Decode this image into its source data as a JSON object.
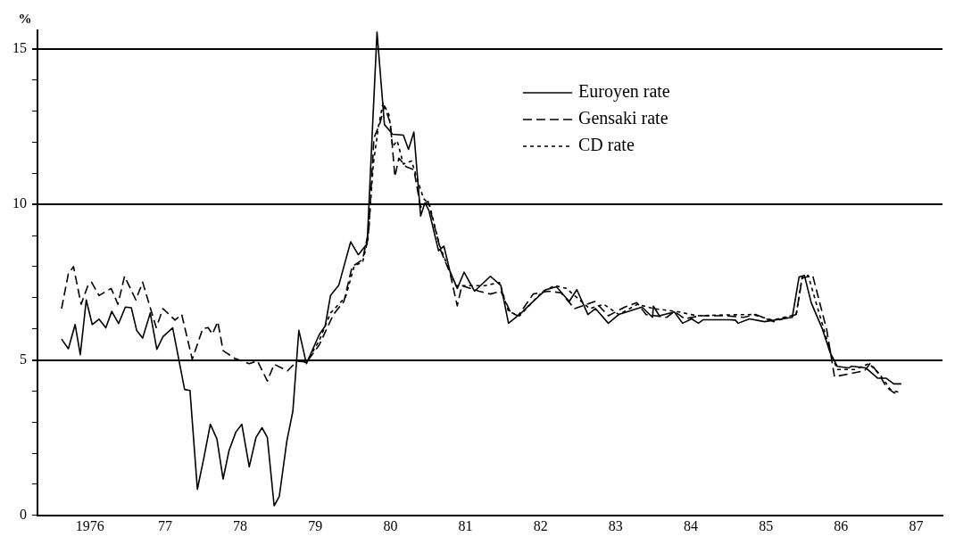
{
  "chart_data": {
    "type": "line",
    "ylabel": "%",
    "legend": "top right",
    "grid": "y",
    "marker": "none",
    "xlim": [
      "1975-10-20",
      "1987-11-07"
    ],
    "xticks": [
      {
        "value": "1976-07-02",
        "label": "1976"
      },
      {
        "value": "1977-07-02",
        "label": "77"
      },
      {
        "value": "1978-07-02",
        "label": "78"
      },
      {
        "value": "1979-07-02",
        "label": "79"
      },
      {
        "value": "1980-07-02",
        "label": "80"
      },
      {
        "value": "1981-07-02",
        "label": "81"
      },
      {
        "value": "1982-07-02",
        "label": "82"
      },
      {
        "value": "1983-07-02",
        "label": "83"
      },
      {
        "value": "1984-07-02",
        "label": "84"
      },
      {
        "value": "1985-07-02",
        "label": "85"
      },
      {
        "value": "1986-07-02",
        "label": "86"
      },
      {
        "value": "1987-07-02",
        "label": "87"
      }
    ],
    "ylim": [
      0,
      15.6
    ],
    "yticks": [
      0,
      {
        "value": 1,
        "label": null
      },
      {
        "value": 2,
        "label": null
      },
      {
        "value": 3,
        "label": null
      },
      {
        "value": 4,
        "label": null
      },
      5,
      {
        "value": 6,
        "label": null
      },
      {
        "value": 7,
        "label": null
      },
      {
        "value": 8,
        "label": null
      },
      {
        "value": 9,
        "label": null
      },
      10,
      {
        "value": 11,
        "label": null
      },
      {
        "value": 12,
        "label": null
      },
      {
        "value": 13,
        "label": null
      },
      {
        "value": 14,
        "label": null
      },
      15
    ],
    "series": [
      {
        "name": "Euroyen rate",
        "color": "#000000",
        "line_style": "solid",
        "x": [
          "1976-02-14",
          "1976-03-19",
          "1976-04-21",
          "1976-05-16",
          "1976-06-14",
          "1976-07-13",
          "1976-08-15",
          "1976-09-17",
          "1976-10-16",
          "1976-11-18",
          "1976-12-21",
          "1977-01-19",
          "1977-02-14",
          "1977-03-15",
          "1977-04-21",
          "1977-05-23",
          "1977-06-22",
          "1977-08-08",
          "1977-10-05",
          "1977-10-31",
          "1977-12-06",
          "1978-01-08",
          "1978-02-07",
          "1978-03-11",
          "1978-04-10",
          "1978-05-09",
          "1978-06-11",
          "1978-07-10",
          "1978-08-15",
          "1978-09-17",
          "1978-10-16",
          "1978-11-11",
          "1978-12-14",
          "1979-01-08",
          "1979-02-14",
          "1979-03-15",
          "1979-04-13",
          "1979-05-20",
          "1979-07-21",
          "1979-08-19",
          "1979-09-14",
          "1979-10-24",
          "1979-12-21",
          "1980-01-27",
          "1980-03-11",
          "1980-04-06",
          "1980-04-28",
          "1980-06-03",
          "1980-07-13",
          "1980-09-03",
          "1980-09-28",
          "1980-10-24",
          "1980-11-26",
          "1980-12-17",
          "1981-01-05",
          "1981-02-21",
          "1981-03-19",
          "1981-04-17",
          "1981-05-23",
          "1981-06-25",
          "1981-08-15",
          "1981-10-31",
          "1981-12-21",
          "1982-01-27",
          "1982-03-30",
          "1982-05-12",
          "1982-07-28",
          "1982-09-17",
          "1982-11-18",
          "1982-12-25",
          "1983-02-17",
          "1983-03-26",
          "1983-05-27",
          "1983-07-17",
          "1983-11-07",
          "1983-12-28",
          "1984-01-01",
          "1984-01-30",
          "1984-04-13",
          "1984-05-23",
          "1984-07-06",
          "1984-08-08",
          "1984-08-30",
          "1985-01-05",
          "1985-02-03",
          "1985-02-17",
          "1985-04-13",
          "1985-06-25",
          "1985-11-07",
          "1985-12-10",
          "1986-01-05",
          "1986-02-07",
          "1986-04-02",
          "1986-05-09",
          "1986-06-14",
          "1986-08-08",
          "1986-08-23",
          "1986-10-31",
          "1986-12-28",
          "1987-02-07",
          "1987-03-15",
          "1987-04-21"
        ],
        "values": [
          5.67,
          5.36,
          6.14,
          5.17,
          6.93,
          6.14,
          6.31,
          6.03,
          6.56,
          6.17,
          6.7,
          6.68,
          5.95,
          5.7,
          6.51,
          5.34,
          5.75,
          6.03,
          4.05,
          4.02,
          0.84,
          1.9,
          2.93,
          2.46,
          1.17,
          2.09,
          2.68,
          2.93,
          1.56,
          2.51,
          2.82,
          2.51,
          0.31,
          0.61,
          2.4,
          3.35,
          5.95,
          4.88,
          5.81,
          6.09,
          7.07,
          7.4,
          8.8,
          8.38,
          8.74,
          12.47,
          15.54,
          12.57,
          12.26,
          12.23,
          11.77,
          12.33,
          9.63,
          10.05,
          9.81,
          8.51,
          8.66,
          7.86,
          7.3,
          7.82,
          7.21,
          7.69,
          7.39,
          6.18,
          6.51,
          6.79,
          7.26,
          7.35,
          6.88,
          7.26,
          6.46,
          6.65,
          6.18,
          6.46,
          6.7,
          6.37,
          6.73,
          6.42,
          6.54,
          6.18,
          6.32,
          6.18,
          6.29,
          6.29,
          6.28,
          6.18,
          6.32,
          6.23,
          6.37,
          7.67,
          7.72,
          6.84,
          6.0,
          5.25,
          4.79,
          4.74,
          4.8,
          4.74,
          4.41,
          4.41,
          4.23,
          4.23
        ]
      },
      {
        "name": "Gensaki rate",
        "color": "#000000",
        "line_style": "dashed",
        "x": [
          "1976-02-14",
          "1976-03-19",
          "1976-04-13",
          "1976-05-20",
          "1976-06-22",
          "1976-07-10",
          "1976-08-15",
          "1976-10-13",
          "1976-11-15",
          "1976-12-17",
          "1977-02-10",
          "1977-03-15",
          "1977-05-20",
          "1977-06-22",
          "1977-08-19",
          "1977-09-21",
          "1977-11-11",
          "1978-01-01",
          "1978-01-27",
          "1978-02-17",
          "1978-03-15",
          "1978-04-10",
          "1978-06-03",
          "1978-08-15",
          "1978-09-24",
          "1978-11-11",
          "1978-12-14",
          "1979-02-17",
          "1979-04-06",
          "1979-05-20",
          "1979-07-21",
          "1979-09-28",
          "1979-11-18",
          "1979-12-28",
          "1980-02-17",
          "1980-03-19",
          "1980-04-13",
          "1980-05-12",
          "1980-06-03",
          "1980-07-02",
          "1980-07-24",
          "1980-08-12",
          "1980-09-17",
          "1980-10-24",
          "1980-11-26",
          "1981-01-01",
          "1981-03-04",
          "1981-04-17",
          "1981-05-23",
          "1981-06-14",
          "1981-09-06",
          "1981-10-31",
          "1981-12-21",
          "1982-02-07",
          "1982-03-15",
          "1982-05-27",
          "1982-08-08",
          "1982-10-09",
          "1982-12-14",
          "1983-03-22",
          "1983-05-27",
          "1983-08-15",
          "1983-10-13",
          "1983-11-26",
          "1984-03-08",
          "1984-04-13",
          "1984-06-03",
          "1984-08-15",
          "1984-12-21",
          "1985-03-15",
          "1985-05-12",
          "1985-08-08",
          "1985-11-26",
          "1985-12-25",
          "1986-02-14",
          "1986-04-24",
          "1986-05-31",
          "1986-08-08",
          "1986-10-24",
          "1986-11-22",
          "1987-01-05",
          "1987-02-07",
          "1987-03-15",
          "1987-04-13"
        ],
        "values": [
          6.65,
          7.77,
          8.0,
          6.79,
          7.39,
          7.5,
          7.07,
          7.3,
          6.79,
          7.69,
          6.93,
          7.5,
          6.04,
          6.65,
          6.28,
          6.46,
          5.02,
          6.0,
          6.04,
          5.83,
          6.23,
          5.3,
          5.06,
          4.88,
          4.97,
          4.32,
          4.86,
          4.65,
          4.97,
          4.92,
          5.48,
          6.46,
          6.88,
          8.0,
          8.23,
          9.16,
          12.14,
          12.61,
          13.17,
          12.61,
          10.89,
          11.49,
          11.21,
          11.12,
          9.91,
          10.1,
          8.51,
          7.81,
          6.74,
          7.39,
          7.21,
          7.12,
          7.21,
          6.51,
          6.42,
          7.12,
          7.21,
          7.16,
          6.65,
          6.88,
          6.42,
          6.7,
          6.84,
          6.46,
          6.37,
          6.56,
          6.32,
          6.42,
          6.42,
          6.37,
          6.46,
          6.23,
          6.46,
          7.63,
          7.72,
          5.95,
          4.46,
          4.55,
          4.65,
          4.9,
          4.51,
          4.13,
          3.95,
          3.9
        ]
      },
      {
        "name": "CD rate",
        "color": "#000000",
        "line_style": "dotted",
        "x": [
          "1979-04-06",
          "1979-05-20",
          "1979-07-21",
          "1979-09-14",
          "1979-11-26",
          "1980-01-08",
          "1980-02-17",
          "1980-03-15",
          "1980-04-10",
          "1980-05-05",
          "1980-05-27",
          "1980-06-25",
          "1980-07-13",
          "1980-08-04",
          "1980-09-03",
          "1980-10-13",
          "1980-11-04",
          "1980-12-10",
          "1981-01-08",
          "1981-02-25",
          "1981-04-10",
          "1981-05-16",
          "1981-07-10",
          "1981-10-05",
          "1981-12-14",
          "1982-01-27",
          "1982-03-22",
          "1982-07-13",
          "1982-09-10",
          "1982-11-04",
          "1983-02-25",
          "1983-05-05",
          "1983-07-17",
          "1983-10-16",
          "1984-01-01",
          "1984-04-24",
          "1984-08-01",
          "1985-01-05",
          "1985-04-28",
          "1985-08-04",
          "1985-11-26",
          "1985-12-25",
          "1986-01-23",
          "1986-03-15",
          "1986-05-16",
          "1986-06-14",
          "1986-09-06",
          "1986-11-15",
          "1987-01-05",
          "1987-02-28",
          "1987-04-13"
        ],
        "values": [
          4.97,
          4.92,
          5.62,
          6.51,
          7.02,
          8.04,
          8.14,
          8.88,
          11.3,
          12.51,
          13.26,
          12.89,
          11.86,
          12.05,
          11.3,
          11.4,
          10.93,
          10.19,
          10.0,
          8.7,
          7.95,
          7.39,
          7.39,
          7.39,
          7.49,
          6.56,
          6.42,
          7.21,
          7.39,
          7.3,
          6.65,
          6.79,
          6.46,
          6.79,
          6.65,
          6.56,
          6.42,
          6.45,
          6.46,
          6.28,
          6.46,
          7.67,
          7.72,
          6.56,
          5.16,
          4.69,
          4.69,
          4.88,
          4.55,
          4.04,
          3.95
        ]
      }
    ]
  }
}
